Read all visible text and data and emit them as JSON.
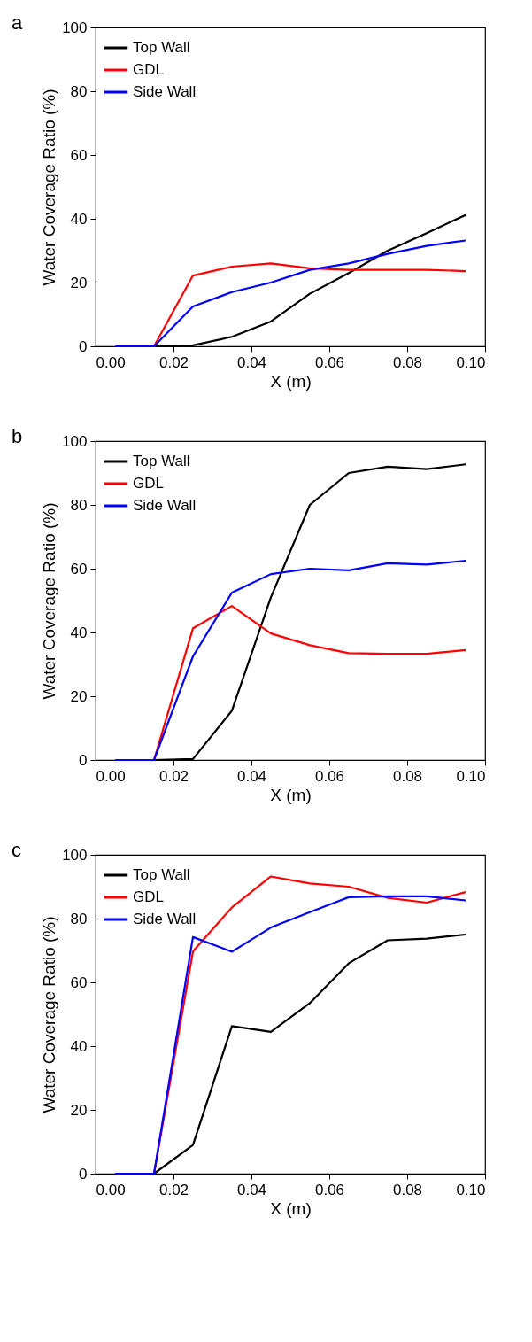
{
  "chart_data": [
    {
      "type": "line",
      "title": "a",
      "xlabel": "X (m)",
      "ylabel": "Water Coverage Ratio (%)",
      "x": [
        0.005,
        0.015,
        0.025,
        0.035,
        0.045,
        0.055,
        0.065,
        0.075,
        0.085,
        0.095
      ],
      "series": [
        {
          "name": "Top Wall",
          "color": "#000000",
          "values": [
            0,
            0,
            0.3,
            3,
            7.8,
            16.5,
            23,
            30,
            35.5,
            41.2
          ]
        },
        {
          "name": "GDL",
          "color": "#ff0000",
          "values": [
            0,
            0,
            22.2,
            25,
            26,
            24.5,
            24,
            24,
            24,
            23.6
          ]
        },
        {
          "name": "Side Wall",
          "color": "#0000ff",
          "values": [
            0,
            0,
            12.5,
            17,
            20,
            24,
            26,
            29,
            31.5,
            33.2
          ]
        }
      ],
      "xlim": [
        0,
        0.1
      ],
      "ylim": [
        0,
        100
      ],
      "xticks": [
        {
          "value": 0,
          "label": "0.00"
        },
        {
          "value": 0.02,
          "label": "0.02"
        },
        {
          "value": 0.04,
          "label": "0.04"
        },
        {
          "value": 0.06,
          "label": "0.06"
        },
        {
          "value": 0.08,
          "label": "0.08"
        },
        {
          "value": 0.1,
          "label": "0.10"
        }
      ],
      "yticks": [
        0,
        20,
        40,
        60,
        80,
        100
      ],
      "legend": "top left",
      "grid": false
    },
    {
      "type": "line",
      "title": "b",
      "xlabel": "X (m)",
      "ylabel": "Water Coverage Ratio (%)",
      "x": [
        0.005,
        0.015,
        0.025,
        0.035,
        0.045,
        0.055,
        0.065,
        0.075,
        0.085,
        0.095
      ],
      "series": [
        {
          "name": "Top Wall",
          "color": "#000000",
          "values": [
            0,
            0,
            0.3,
            15.5,
            51,
            80,
            90,
            92,
            91.2,
            92.7
          ]
        },
        {
          "name": "GDL",
          "color": "#ff0000",
          "values": [
            0,
            0,
            41.3,
            48.3,
            39.7,
            36,
            33.5,
            33.3,
            33.3,
            34.5
          ]
        },
        {
          "name": "Side Wall",
          "color": "#0000ff",
          "values": [
            0,
            0,
            32.5,
            52.5,
            58.3,
            60,
            59.5,
            61.7,
            61.3,
            62.5
          ]
        }
      ],
      "xlim": [
        0,
        0.1
      ],
      "ylim": [
        0,
        100
      ],
      "xticks": [
        {
          "value": 0,
          "label": "0.00"
        },
        {
          "value": 0.02,
          "label": "0.02"
        },
        {
          "value": 0.04,
          "label": "0.04"
        },
        {
          "value": 0.06,
          "label": "0.06"
        },
        {
          "value": 0.08,
          "label": "0.08"
        },
        {
          "value": 0.1,
          "label": "0.10"
        }
      ],
      "yticks": [
        0,
        20,
        40,
        60,
        80,
        100
      ],
      "legend": "top left",
      "grid": false
    },
    {
      "type": "line",
      "title": "c",
      "xlabel": "X (m)",
      "ylabel": "Water Coverage Ratio (%)",
      "x": [
        0.005,
        0.015,
        0.025,
        0.035,
        0.045,
        0.055,
        0.065,
        0.075,
        0.085,
        0.095
      ],
      "series": [
        {
          "name": "Top Wall",
          "color": "#000000",
          "values": [
            0,
            0,
            9,
            46.3,
            44.5,
            53.5,
            66,
            73.2,
            73.7,
            75
          ]
        },
        {
          "name": "GDL",
          "color": "#ff0000",
          "values": [
            0,
            0,
            69.7,
            83.5,
            93.2,
            91,
            90,
            86.5,
            85,
            88.3
          ]
        },
        {
          "name": "Side Wall",
          "color": "#0000ff",
          "values": [
            0,
            0,
            74.2,
            69.6,
            77.2,
            82,
            86.7,
            87,
            87,
            85.7
          ]
        }
      ],
      "xlim": [
        0,
        0.1
      ],
      "ylim": [
        0,
        100
      ],
      "xticks": [
        {
          "value": 0,
          "label": "0.00"
        },
        {
          "value": 0.02,
          "label": "0.02"
        },
        {
          "value": 0.04,
          "label": "0.04"
        },
        {
          "value": 0.06,
          "label": "0.06"
        },
        {
          "value": 0.08,
          "label": "0.08"
        },
        {
          "value": 0.1,
          "label": "0.10"
        }
      ],
      "yticks": [
        0,
        20,
        40,
        60,
        80,
        100
      ],
      "legend": "top left",
      "grid": false
    }
  ]
}
